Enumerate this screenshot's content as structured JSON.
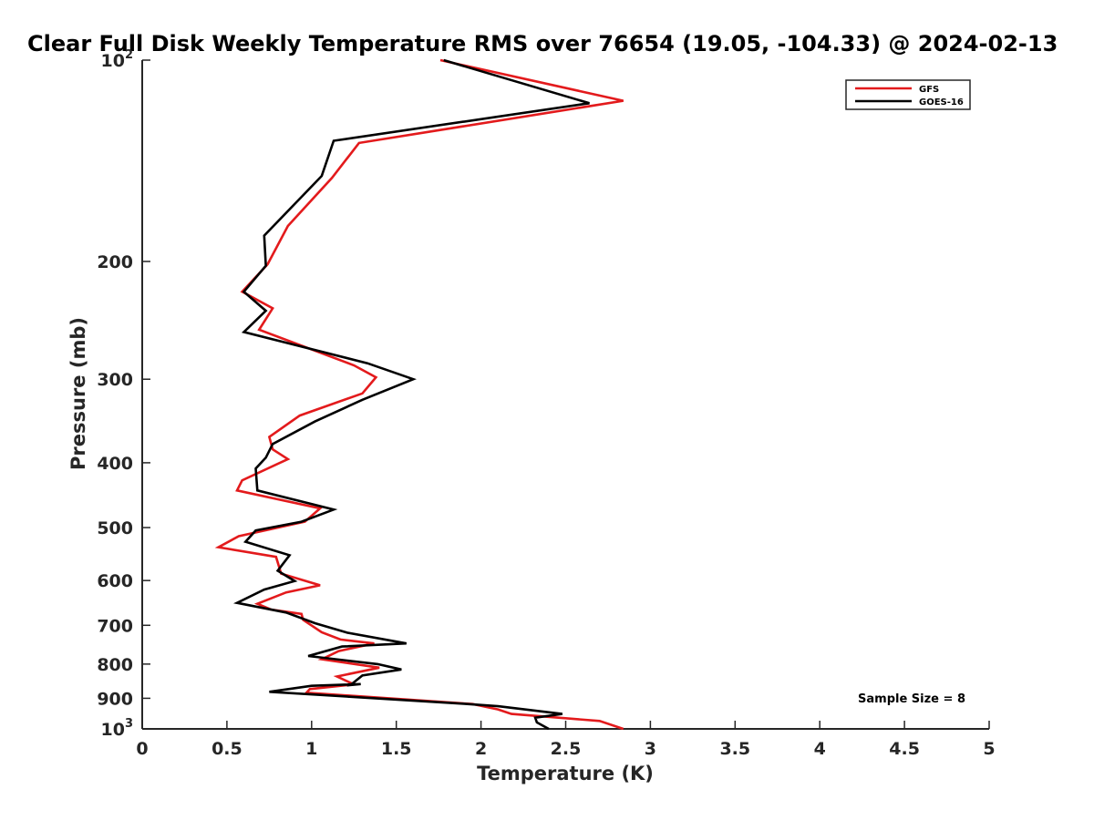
{
  "chart_data": {
    "type": "line",
    "title": "Clear Full Disk Weekly Temperature RMS over 76654 (19.05, -104.33) @ 2024-02-13",
    "xlabel": "Temperature (K)",
    "ylabel": "Pressure (mb)",
    "xlim": [
      0,
      5
    ],
    "ylim": [
      100,
      1000
    ],
    "yscale": "log",
    "y_reversed": true,
    "grid": false,
    "legend_position": "top-right",
    "x_ticks": [
      "0",
      "0.5",
      "1",
      "1.5",
      "2",
      "2.5",
      "3",
      "3.5",
      "4",
      "4.5",
      "5"
    ],
    "y_ticks": [
      {
        "value": 100,
        "base": "10",
        "sup": "2"
      },
      {
        "value": 200,
        "base": "200",
        "sup": ""
      },
      {
        "value": 300,
        "base": "300",
        "sup": ""
      },
      {
        "value": 400,
        "base": "400",
        "sup": ""
      },
      {
        "value": 500,
        "base": "500",
        "sup": ""
      },
      {
        "value": 600,
        "base": "600",
        "sup": ""
      },
      {
        "value": 700,
        "base": "700",
        "sup": ""
      },
      {
        "value": 800,
        "base": "800",
        "sup": ""
      },
      {
        "value": 900,
        "base": "900",
        "sup": ""
      },
      {
        "value": 1000,
        "base": "10",
        "sup": "3"
      }
    ],
    "annotation": "Sample Size = 8",
    "series": [
      {
        "name": "GFS",
        "color": "#e31a1c",
        "points": [
          [
            1.76,
            100
          ],
          [
            2.84,
            115
          ],
          [
            1.28,
            133
          ],
          [
            1.12,
            150
          ],
          [
            0.86,
            177
          ],
          [
            0.74,
            202
          ],
          [
            0.59,
            222
          ],
          [
            0.77,
            235
          ],
          [
            0.69,
            253
          ],
          [
            1.25,
            286
          ],
          [
            1.38,
            298
          ],
          [
            1.3,
            315
          ],
          [
            0.93,
            340
          ],
          [
            0.75,
            366
          ],
          [
            0.77,
            382
          ],
          [
            0.86,
            395
          ],
          [
            0.59,
            425
          ],
          [
            0.56,
            440
          ],
          [
            1.05,
            468
          ],
          [
            0.96,
            490
          ],
          [
            0.57,
            515
          ],
          [
            0.45,
            535
          ],
          [
            0.79,
            553
          ],
          [
            0.82,
            586
          ],
          [
            1.05,
            610
          ],
          [
            0.85,
            625
          ],
          [
            0.68,
            650
          ],
          [
            0.76,
            663
          ],
          [
            0.94,
            673
          ],
          [
            0.95,
            687
          ],
          [
            1.06,
            717
          ],
          [
            1.17,
            735
          ],
          [
            1.37,
            745
          ],
          [
            1.16,
            765
          ],
          [
            1.06,
            787
          ],
          [
            1.4,
            810
          ],
          [
            1.15,
            835
          ],
          [
            1.25,
            858
          ],
          [
            0.99,
            872
          ],
          [
            0.97,
            883
          ],
          [
            1.95,
            918
          ],
          [
            2.1,
            935
          ],
          [
            2.18,
            950
          ],
          [
            2.7,
            973
          ],
          [
            2.84,
            1000
          ]
        ]
      },
      {
        "name": "GOES-16",
        "color": "#000000",
        "points": [
          [
            1.78,
            100
          ],
          [
            2.64,
            116
          ],
          [
            1.13,
            132
          ],
          [
            1.06,
            149
          ],
          [
            0.72,
            183
          ],
          [
            0.73,
            203
          ],
          [
            0.6,
            222
          ],
          [
            0.73,
            237
          ],
          [
            0.6,
            255
          ],
          [
            1.33,
            284
          ],
          [
            1.6,
            300
          ],
          [
            1.3,
            322
          ],
          [
            1.02,
            347
          ],
          [
            0.77,
            375
          ],
          [
            0.73,
            393
          ],
          [
            0.67,
            408
          ],
          [
            0.68,
            440
          ],
          [
            1.13,
            470
          ],
          [
            0.94,
            490
          ],
          [
            0.67,
            505
          ],
          [
            0.61,
            525
          ],
          [
            0.87,
            550
          ],
          [
            0.8,
            580
          ],
          [
            0.9,
            601
          ],
          [
            0.72,
            619
          ],
          [
            0.56,
            648
          ],
          [
            0.85,
            670
          ],
          [
            1.02,
            695
          ],
          [
            1.21,
            718
          ],
          [
            1.56,
            745
          ],
          [
            1.18,
            753
          ],
          [
            0.98,
            778
          ],
          [
            1.39,
            800
          ],
          [
            1.53,
            815
          ],
          [
            1.3,
            832
          ],
          [
            1.23,
            860
          ],
          [
            1.29,
            857
          ],
          [
            1.0,
            862
          ],
          [
            0.75,
            880
          ],
          [
            1.9,
            917
          ],
          [
            2.1,
            925
          ],
          [
            2.48,
            950
          ],
          [
            2.32,
            962
          ],
          [
            2.33,
            978
          ],
          [
            2.4,
            1000
          ]
        ]
      }
    ]
  }
}
